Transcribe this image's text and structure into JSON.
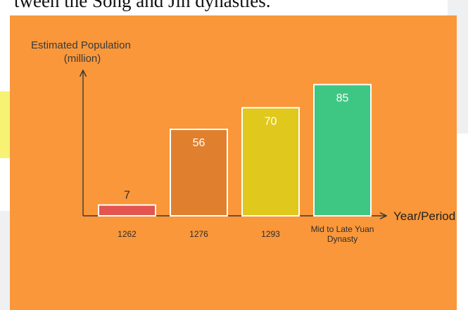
{
  "page": {
    "heading_fragment": "tween the Song and Jin dynasties."
  },
  "chart_data": {
    "type": "bar",
    "categories": [
      "1262",
      "1276",
      "1293",
      "Mid to Late Yuan Dynasty"
    ],
    "category_lines": [
      [
        "1262"
      ],
      [
        "1276"
      ],
      [
        "1293"
      ],
      [
        "Mid to Late Yuan",
        "Dynasty"
      ]
    ],
    "values": [
      7,
      56,
      70,
      85
    ],
    "bar_colors": [
      "#e35550",
      "#e0802f",
      "#e0c81c",
      "#3ec683"
    ],
    "ylabel_lines": [
      "Estimated Population",
      "(million)"
    ],
    "xlabel": "Year/Period",
    "ylim": [
      0,
      102
    ],
    "grid": false,
    "legend": "none",
    "background": "#f9973a"
  }
}
